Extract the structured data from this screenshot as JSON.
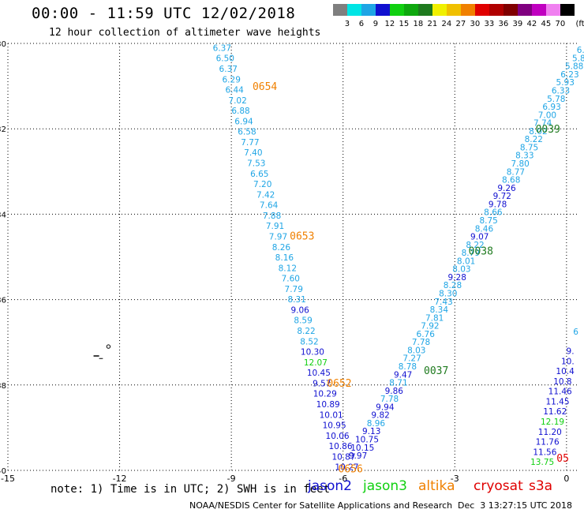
{
  "header": {
    "title": "00:00 - 11:59 UTC 12/02/2018",
    "subtitle": "12 hour collection of altimeter wave heights"
  },
  "color_scale": {
    "unit": "(ft)",
    "swatches": [
      {
        "label": "3",
        "color": "#7f7f7f"
      },
      {
        "label": "6",
        "color": "#00e5e5"
      },
      {
        "label": "9",
        "color": "#1fa5e5"
      },
      {
        "label": "12",
        "color": "#1010d0"
      },
      {
        "label": "15",
        "color": "#10d010"
      },
      {
        "label": "18",
        "color": "#0ea80e"
      },
      {
        "label": "21",
        "color": "#1e7a1e"
      },
      {
        "label": "24",
        "color": "#f0f000"
      },
      {
        "label": "27",
        "color": "#f0c000"
      },
      {
        "label": "30",
        "color": "#f08000"
      },
      {
        "label": "33",
        "color": "#e00000"
      },
      {
        "label": "36",
        "color": "#b00000"
      },
      {
        "label": "39",
        "color": "#800000"
      },
      {
        "label": "42",
        "color": "#800080"
      },
      {
        "label": "45",
        "color": "#c000c0"
      },
      {
        "label": "70",
        "color": "#f080f0"
      },
      {
        "label": "",
        "color": "#000000"
      }
    ]
  },
  "axes": {
    "lon_ticks": [
      {
        "value": -15,
        "label": "-15"
      },
      {
        "value": -12,
        "label": "-12"
      },
      {
        "value": -9,
        "label": "-9"
      },
      {
        "value": -6,
        "label": "-6"
      },
      {
        "value": -3,
        "label": "-3"
      },
      {
        "value": 0,
        "label": "0"
      }
    ],
    "lat_ticks": [
      {
        "value": -30,
        "label": "-30"
      },
      {
        "value": -32,
        "label": "-32"
      },
      {
        "value": -34,
        "label": "-34"
      },
      {
        "value": -36,
        "label": "-36"
      },
      {
        "value": -38,
        "label": "-38"
      },
      {
        "value": -40,
        "label": "-40"
      }
    ]
  },
  "map_data": {
    "colors": {
      "light": "#1fa5e5",
      "dark": "#1010d0",
      "green": "#10d010",
      "orange": "#f08000",
      "darkgreen": "#1e7a1e",
      "red": "#e00000"
    },
    "pass_labels": [
      {
        "text": "0654",
        "lon": -8.1,
        "lat": -31.0,
        "c": "orange"
      },
      {
        "text": "0653",
        "lon": -7.1,
        "lat": -34.5,
        "c": "orange"
      },
      {
        "text": "0652",
        "lon": -6.1,
        "lat": -37.95,
        "c": "orange"
      },
      {
        "text": "0656",
        "lon": -5.8,
        "lat": -39.95,
        "c": "orange"
      },
      {
        "text": "0038",
        "lon": -2.3,
        "lat": -34.85,
        "c": "darkgreen"
      },
      {
        "text": "0037",
        "lon": -3.5,
        "lat": -37.65,
        "c": "darkgreen"
      },
      {
        "text": "0039",
        "lon": -0.5,
        "lat": -32.0,
        "c": "darkgreen"
      },
      {
        "text": "05",
        "lon": -0.1,
        "lat": -39.7,
        "c": "red"
      }
    ],
    "track_a": [
      [
        "6.37",
        "light"
      ],
      [
        "6.50",
        "light"
      ],
      [
        "6.37",
        "light"
      ],
      [
        "6.29",
        "light"
      ],
      [
        "6.44",
        "light"
      ],
      [
        "7.02",
        "light"
      ],
      [
        "6.88",
        "light"
      ],
      [
        "6.94",
        "light"
      ],
      [
        "6.58",
        "light"
      ],
      [
        "7.77",
        "light"
      ],
      [
        "7.40",
        "light"
      ],
      [
        "7.53",
        "light"
      ],
      [
        "6.65",
        "light"
      ],
      [
        "7.20",
        "light"
      ],
      [
        "7.42",
        "light"
      ],
      [
        "7.64",
        "light"
      ],
      [
        "7.88",
        "light"
      ],
      [
        "7.91",
        "light"
      ],
      [
        "7.97",
        "light"
      ],
      [
        "8.26",
        "light"
      ],
      [
        "8.16",
        "light"
      ],
      [
        "8.12",
        "light"
      ],
      [
        "7.60",
        "light"
      ],
      [
        "7.79",
        "light"
      ],
      [
        "8.31",
        "light"
      ],
      [
        "9.06",
        "dark"
      ],
      [
        "8.59",
        "light"
      ],
      [
        "8.22",
        "light"
      ],
      [
        "8.52",
        "light"
      ],
      [
        "10.30",
        "dark"
      ],
      [
        "12.07",
        "green"
      ],
      [
        "10.45",
        "dark"
      ],
      [
        "9.57",
        "dark"
      ],
      [
        "10.29",
        "dark"
      ],
      [
        "10.89",
        "dark"
      ],
      [
        "10.01",
        "dark"
      ],
      [
        "10.95",
        "dark"
      ],
      [
        "10.06",
        "dark"
      ],
      [
        "10.86",
        "dark"
      ],
      [
        "10.87",
        "dark"
      ],
      [
        "10.27",
        "dark"
      ]
    ],
    "track_b": [
      [
        "9.97",
        "dark"
      ],
      [
        "10.15",
        "dark"
      ],
      [
        "10.75",
        "dark"
      ],
      [
        "9.13",
        "dark"
      ],
      [
        "8.96",
        "light"
      ],
      [
        "9.82",
        "dark"
      ],
      [
        "9.94",
        "dark"
      ],
      [
        "7.78",
        "light"
      ],
      [
        "9.86",
        "dark"
      ],
      [
        "8.71",
        "light"
      ],
      [
        "9.47",
        "dark"
      ],
      [
        "8.78",
        "light"
      ],
      [
        "7.27",
        "light"
      ],
      [
        "8.03",
        "light"
      ],
      [
        "7.78",
        "light"
      ],
      [
        "6.76",
        "light"
      ],
      [
        "7.92",
        "light"
      ],
      [
        "7.81",
        "light"
      ],
      [
        "8.34",
        "light"
      ],
      [
        "7.43",
        "light"
      ],
      [
        "8.30",
        "light"
      ],
      [
        "8.28",
        "light"
      ],
      [
        "9.28",
        "dark"
      ],
      [
        "8.03",
        "light"
      ],
      [
        "8.01",
        "light"
      ],
      [
        "8.79",
        "light"
      ],
      [
        "8.22",
        "light"
      ],
      [
        "9.07",
        "dark"
      ],
      [
        "8.46",
        "light"
      ],
      [
        "8.75",
        "light"
      ],
      [
        "8.66",
        "light"
      ],
      [
        "9.78",
        "dark"
      ],
      [
        "9.72",
        "dark"
      ],
      [
        "9.26",
        "dark"
      ],
      [
        "8.68",
        "light"
      ],
      [
        "8.77",
        "light"
      ],
      [
        "7.80",
        "light"
      ],
      [
        "8.33",
        "light"
      ],
      [
        "8.75",
        "light"
      ],
      [
        "8.22",
        "light"
      ],
      [
        "8.02",
        "light"
      ],
      [
        "7.74",
        "light"
      ],
      [
        "7.00",
        "light"
      ],
      [
        "6.93",
        "light"
      ],
      [
        "5.78",
        "light"
      ],
      [
        "6.33",
        "light"
      ],
      [
        "5.93",
        "light"
      ],
      [
        "6.23",
        "light"
      ],
      [
        "5.88",
        "light"
      ],
      [
        "5.8",
        "light"
      ],
      [
        "6.3",
        "light"
      ]
    ],
    "track_c": [
      [
        "9.",
        "dark"
      ],
      [
        "10.",
        "dark"
      ],
      [
        "10.4",
        "dark"
      ],
      [
        "10.8",
        "dark"
      ],
      [
        "11.46",
        "dark"
      ],
      [
        "11.45",
        "dark"
      ],
      [
        "11.62",
        "dark"
      ],
      [
        "12.19",
        "green"
      ],
      [
        "11.20",
        "dark"
      ],
      [
        "11.76",
        "dark"
      ],
      [
        "11.56",
        "dark"
      ],
      [
        "13.75",
        "green"
      ]
    ],
    "legend": [
      {
        "text": "jason2",
        "c": "dark"
      },
      {
        "text": "jason3",
        "c": "green"
      },
      {
        "text": "altika",
        "c": "orange"
      },
      {
        "text": "cryosat",
        "c": "red"
      },
      {
        "text": "s3a",
        "c": "red"
      }
    ]
  },
  "footer": {
    "note": "note: 1) Time is in UTC; 2) SWH is in feet",
    "credit": "NOAA/NESDIS Center for Satellite Applications and Research",
    "timestamp": "Dec  3 13:27:15 UTC 2018"
  }
}
